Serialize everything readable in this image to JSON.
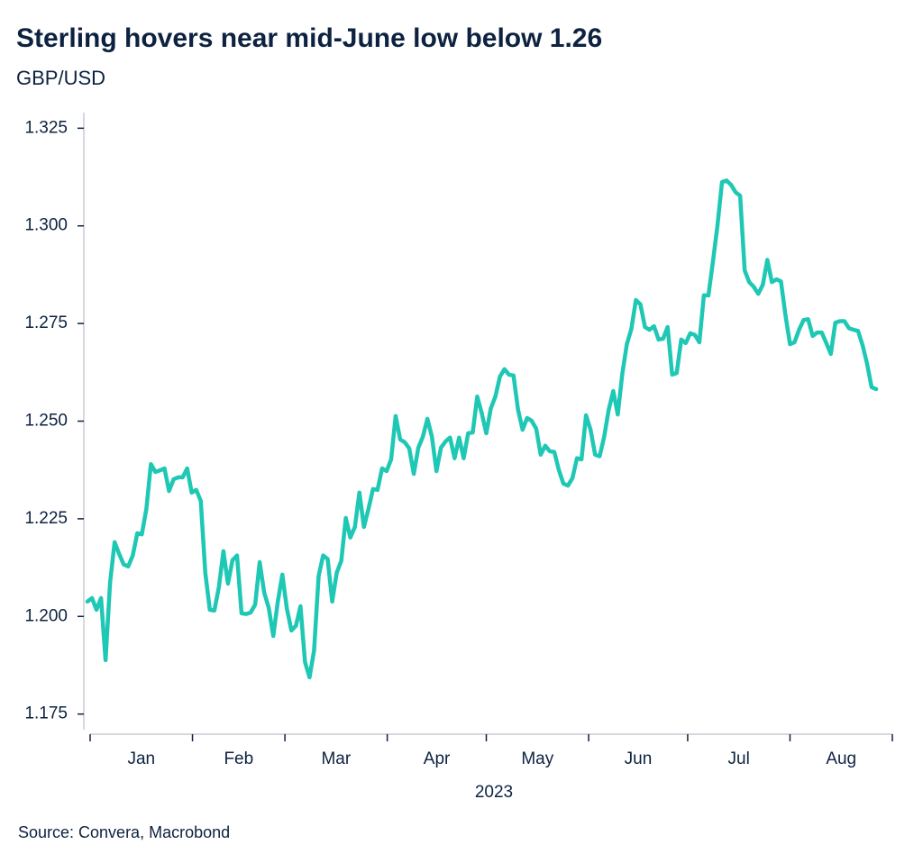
{
  "chart_data": {
    "type": "line",
    "title": "Sterling hovers near mid-June low below 1.26",
    "subtitle": "GBP/USD",
    "source": "Source: Convera, Macrobond",
    "month_labels": [
      "Jan",
      "Feb",
      "Mar",
      "Apr",
      "May",
      "Jun",
      "Jul",
      "Aug"
    ],
    "x_label": "2023",
    "ylim": [
      1.171,
      1.329
    ],
    "yticks": [
      1.175,
      {
        "value": 1.2,
        "label": "1.200"
      },
      1.225,
      {
        "value": 1.25,
        "label": "1.250"
      },
      1.275,
      {
        "value": 1.3,
        "label": "1.300"
      },
      1.325
    ],
    "grid": false,
    "series": [
      {
        "color": "#1ec8b4",
        "values": [
          1.2038,
          1.2047,
          1.2017,
          1.2047,
          1.1888,
          1.2087,
          1.219,
          1.216,
          1.2133,
          1.2128,
          1.2156,
          1.2213,
          1.221,
          1.2275,
          1.239,
          1.237,
          1.2374,
          1.2379,
          1.2321,
          1.2351,
          1.2356,
          1.2356,
          1.2379,
          1.2317,
          1.2324,
          1.2296,
          1.2112,
          1.2017,
          1.2015,
          1.2075,
          1.2167,
          1.2084,
          1.2144,
          1.2156,
          1.2008,
          1.2006,
          1.201,
          1.203,
          1.2139,
          1.2061,
          1.2022,
          1.195,
          1.2038,
          1.2107,
          1.202,
          1.1964,
          1.1976,
          1.2026,
          1.1883,
          1.1844,
          1.1913,
          1.2103,
          1.2156,
          1.2147,
          1.2038,
          1.2112,
          1.2142,
          1.2252,
          1.2202,
          1.2229,
          1.2317,
          1.2229,
          1.2275,
          1.2326,
          1.2324,
          1.2379,
          1.2372,
          1.2402,
          1.2513,
          1.2453,
          1.2446,
          1.243,
          1.2365,
          1.2432,
          1.246,
          1.2506,
          1.246,
          1.2372,
          1.2432,
          1.2448,
          1.2458,
          1.2405,
          1.2458,
          1.2405,
          1.2469,
          1.2471,
          1.2563,
          1.252,
          1.2469,
          1.2533,
          1.2563,
          1.2614,
          1.2633,
          1.2619,
          1.2617,
          1.2529,
          1.2478,
          1.2508,
          1.2501,
          1.2481,
          1.2414,
          1.2437,
          1.2423,
          1.2421,
          1.2375,
          1.234,
          1.2335,
          1.2354,
          1.2405,
          1.2402,
          1.2515,
          1.2478,
          1.2414,
          1.241,
          1.246,
          1.2529,
          1.2577,
          1.2517,
          1.2621,
          1.2697,
          1.2736,
          1.281,
          1.2799,
          1.2741,
          1.2734,
          1.2743,
          1.2709,
          1.2711,
          1.2741,
          1.2619,
          1.2623,
          1.2709,
          1.27,
          1.2725,
          1.2721,
          1.2702,
          1.2822,
          1.2822,
          1.2909,
          1.3001,
          1.3112,
          1.3116,
          1.3105,
          1.3086,
          1.3077,
          1.2886,
          1.2856,
          1.2844,
          1.2826,
          1.2849,
          1.2913,
          1.2856,
          1.2863,
          1.2858,
          1.2771,
          1.2697,
          1.2702,
          1.2734,
          1.2759,
          1.2761,
          1.2718,
          1.2727,
          1.2727,
          1.27,
          1.2672,
          1.2752,
          1.2756,
          1.2756,
          1.2738,
          1.2734,
          1.2731,
          1.2695,
          1.2647,
          1.2587,
          1.2582
        ]
      }
    ]
  }
}
